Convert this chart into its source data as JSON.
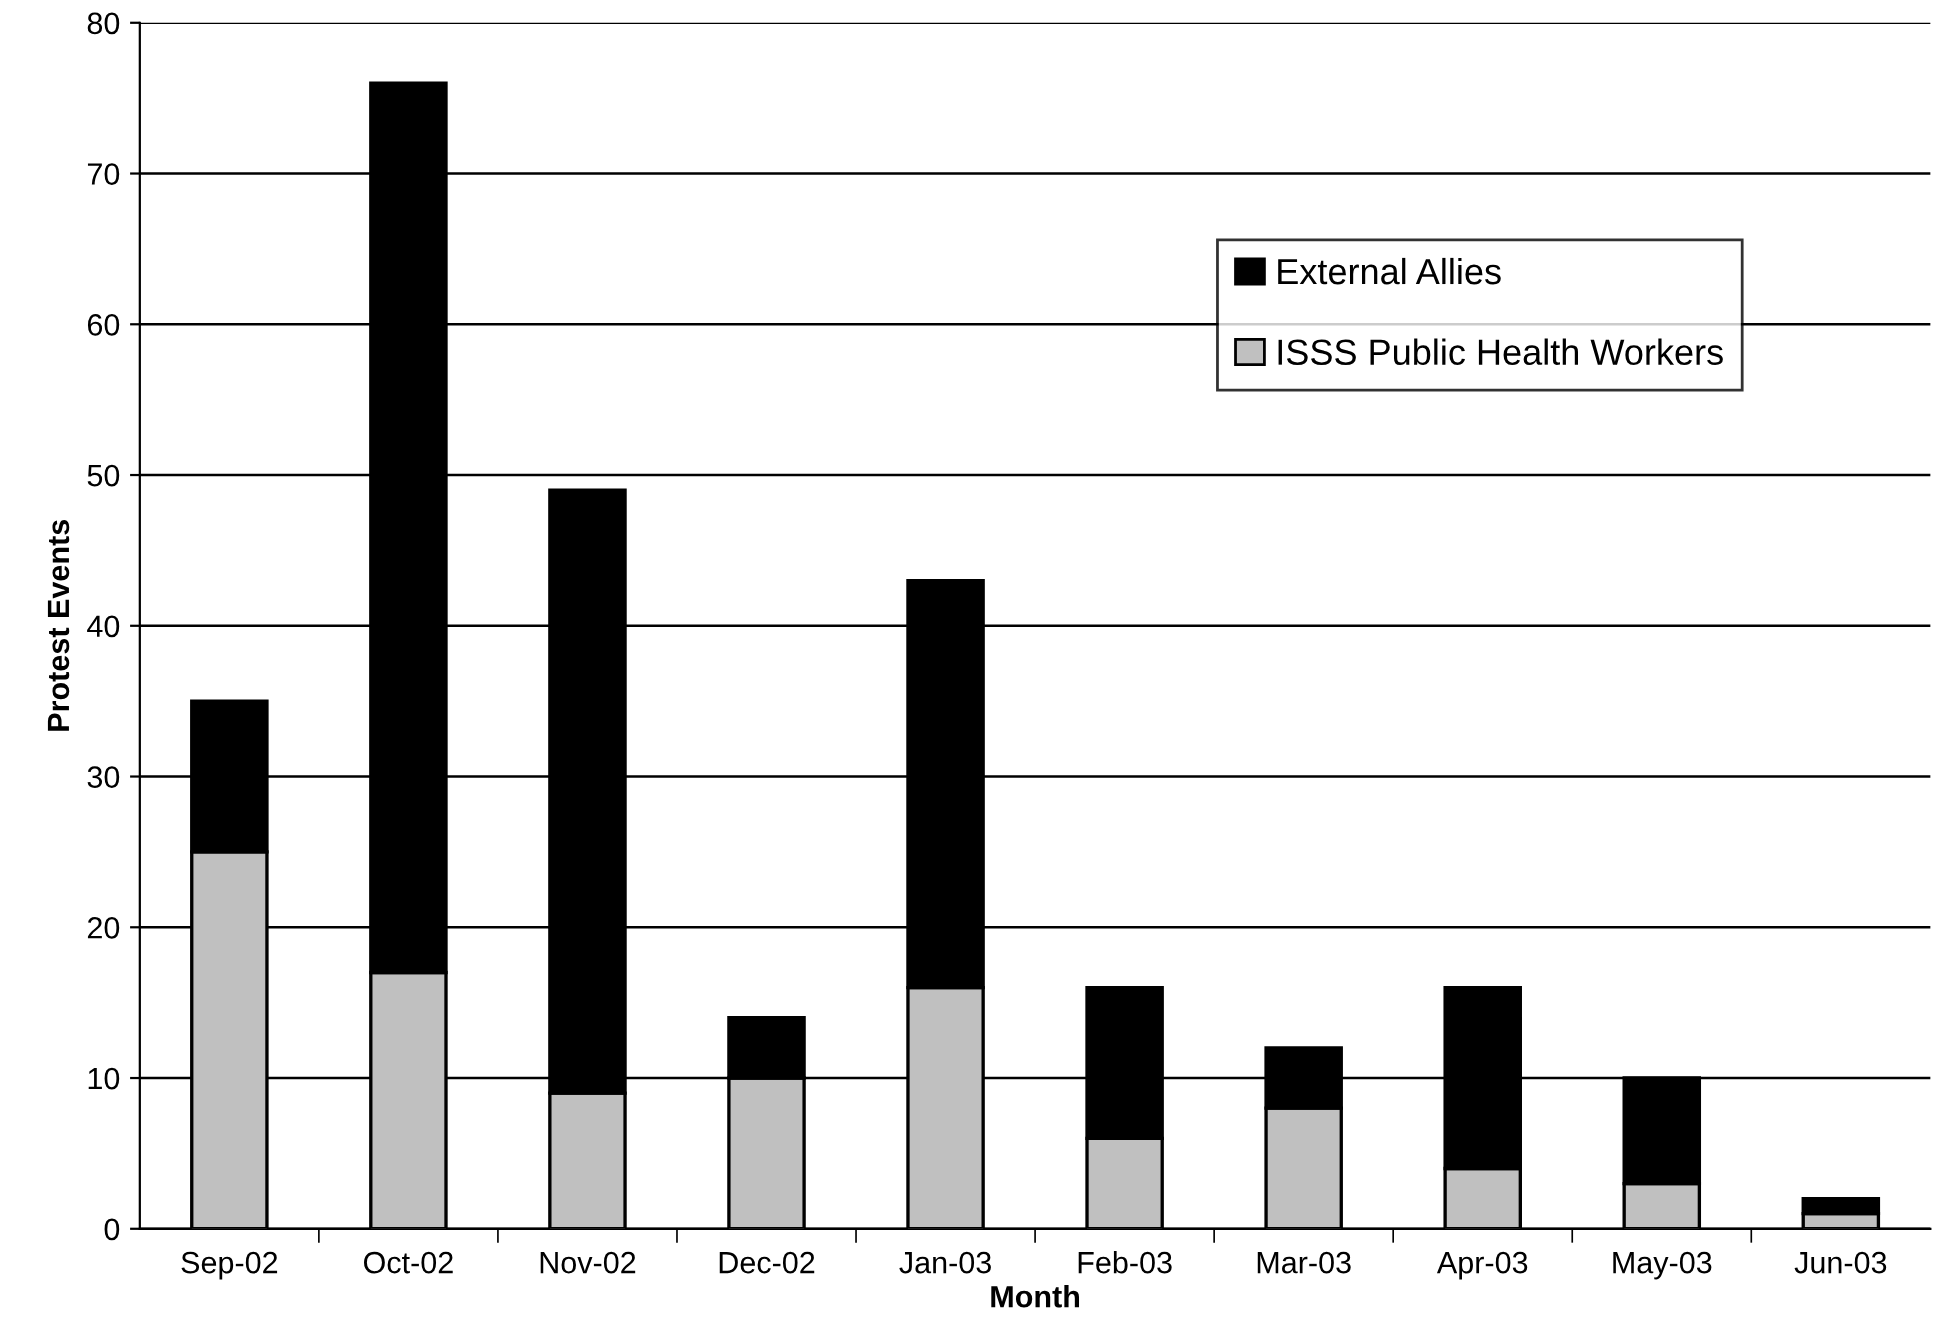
{
  "chart_data": {
    "type": "bar",
    "stacked": true,
    "xlabel": "Month",
    "ylabel": "Protest Events",
    "categories": [
      "Sep-02",
      "Oct-02",
      "Nov-02",
      "Dec-02",
      "Jan-03",
      "Feb-03",
      "Mar-03",
      "Apr-03",
      "May-03",
      "Jun-03"
    ],
    "series": [
      {
        "name": "ISSS Public Health Workers",
        "color": "#c0c0c0",
        "values": [
          25,
          17,
          9,
          10,
          16,
          6,
          8,
          4,
          3,
          1
        ]
      },
      {
        "name": "External Allies",
        "color": "#000000",
        "values": [
          10,
          59,
          40,
          4,
          27,
          10,
          4,
          12,
          7,
          1
        ]
      }
    ],
    "ylim": [
      0,
      80
    ],
    "yticks": [
      0,
      10,
      20,
      30,
      40,
      50,
      60,
      70,
      80
    ],
    "grid": "y",
    "legend": "top right"
  }
}
